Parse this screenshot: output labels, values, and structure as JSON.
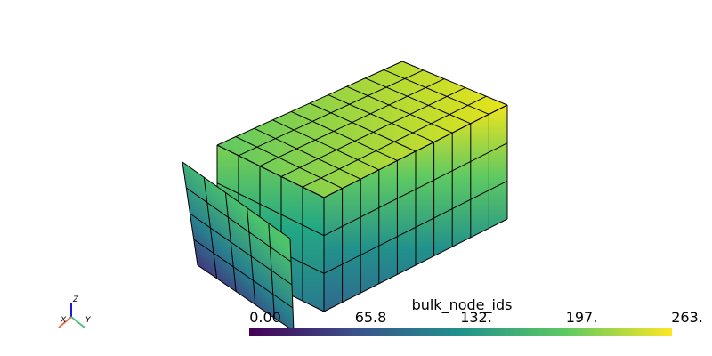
{
  "scalar_bar": {
    "title": "bulk_node_ids",
    "tick_labels": [
      "0.00",
      "65.8",
      "132.",
      "197.",
      "263."
    ]
  },
  "axes_widget": {
    "x": "X",
    "y": "Y",
    "z": "Z"
  }
}
